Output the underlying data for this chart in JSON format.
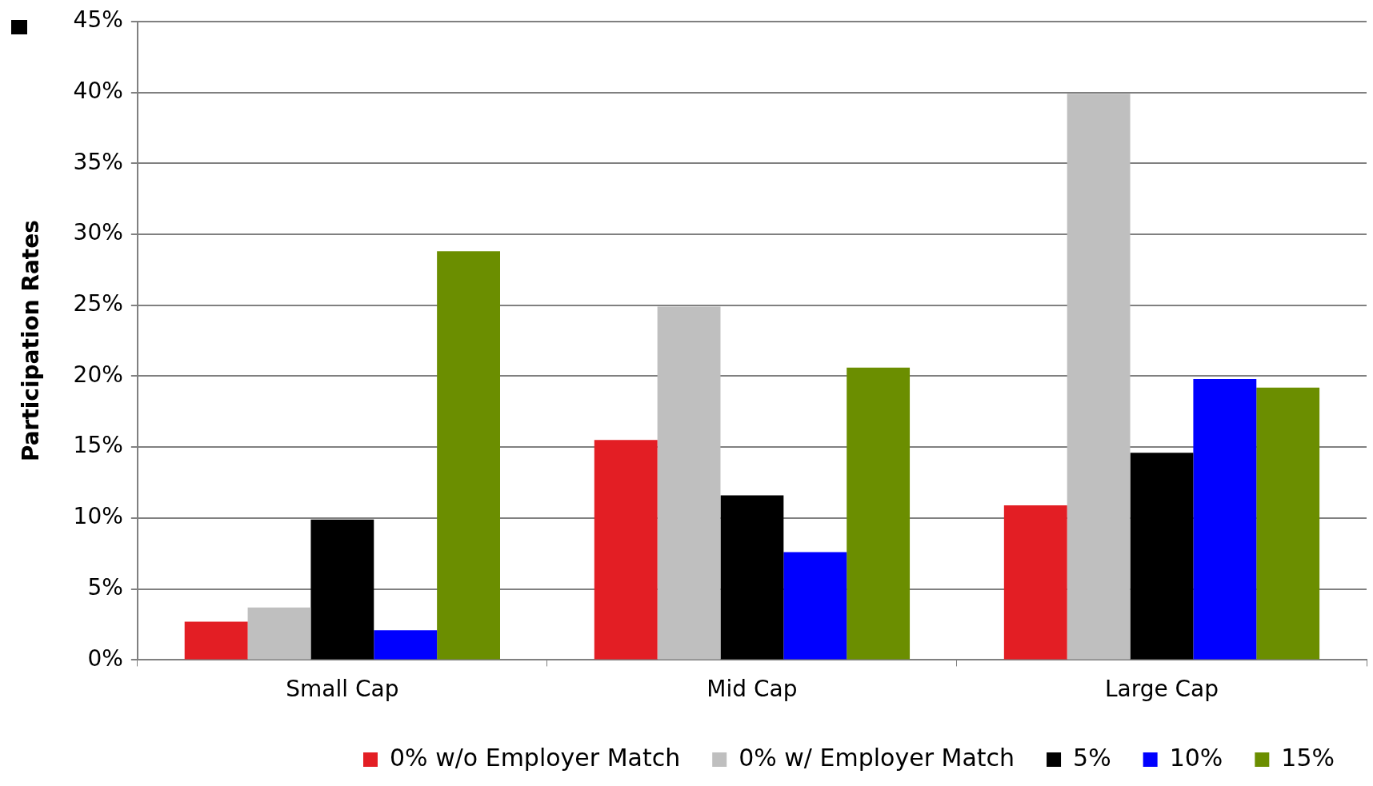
{
  "chart_data": {
    "type": "bar",
    "ylabel": "Participation Rates",
    "categories": [
      "Small Cap",
      "Mid Cap",
      "Large Cap"
    ],
    "series": [
      {
        "name": "0% w/o Employer Match",
        "color": "#e31e24",
        "values": [
          2.7,
          15.5,
          10.9
        ]
      },
      {
        "name": "0% w/ Employer Match",
        "color": "#bfbfbf",
        "values": [
          3.7,
          24.9,
          39.9
        ]
      },
      {
        "name": "5%",
        "color": "#000000",
        "values": [
          9.9,
          11.6,
          14.6
        ]
      },
      {
        "name": "10%",
        "color": "#0000ff",
        "values": [
          2.1,
          7.6,
          19.8
        ]
      },
      {
        "name": "15%",
        "color": "#6b8e00",
        "values": [
          28.8,
          20.6,
          19.2
        ]
      }
    ],
    "ylim": [
      0,
      45
    ],
    "yticks": [
      {
        "value": 0,
        "label": "0%"
      },
      {
        "value": 5,
        "label": "5%"
      },
      {
        "value": 10,
        "label": "10%"
      },
      {
        "value": 15,
        "label": "15%"
      },
      {
        "value": 20,
        "label": "20%"
      },
      {
        "value": 25,
        "label": "25%"
      },
      {
        "value": 30,
        "label": "30%"
      },
      {
        "value": 35,
        "label": "35%"
      },
      {
        "value": 40,
        "label": "40%"
      },
      {
        "value": 45,
        "label": "45%"
      }
    ],
    "grid": "y",
    "legend": "bottom"
  }
}
